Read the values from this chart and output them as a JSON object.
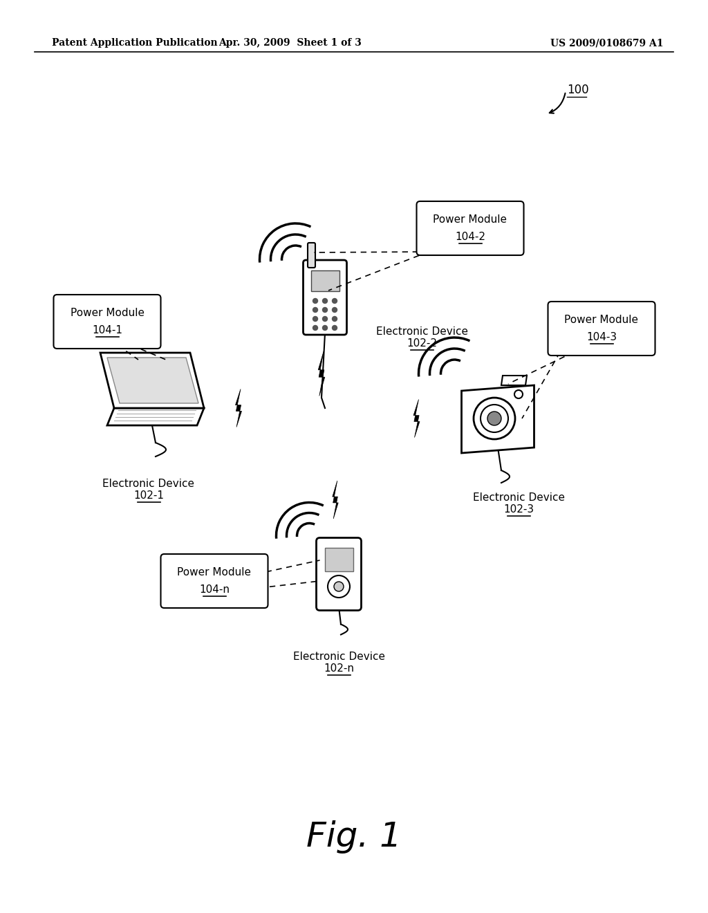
{
  "bg_color": "#ffffff",
  "header_left": "Patent Application Publication",
  "header_mid": "Apr. 30, 2009  Sheet 1 of 3",
  "header_right": "US 2009/0108679 A1",
  "fig_label": "Fig. 1",
  "ref_number": "100",
  "fig_width": 10.24,
  "fig_height": 13.2,
  "fig_dpi": 100
}
